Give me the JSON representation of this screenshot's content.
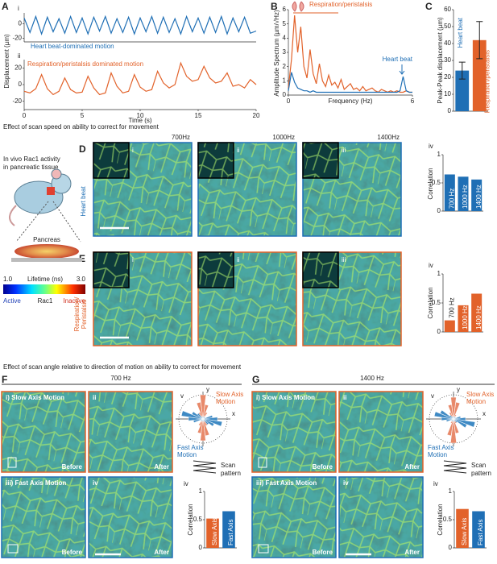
{
  "panels": {
    "A": {
      "label": "A"
    },
    "B": {
      "label": "B"
    },
    "C": {
      "label": "C"
    },
    "speed_header": "Effect of scan speed on ability to correct for movement",
    "mouse": {
      "caption": [
        "In vivo Rac1 activity",
        "in pancreatic tissue"
      ],
      "organ": "Pancreas",
      "scale_min": "1.0",
      "scale_name": "Lifetime (ns)",
      "scale_max": "3.0",
      "active": "Active",
      "rac": "Rac1",
      "inactive": "Inactive"
    },
    "D": {
      "label": "D",
      "headers": [
        "700Hz",
        "1000Hz",
        "1400Hz"
      ],
      "numerals": [
        "i",
        "ii",
        "iii"
      ],
      "side": [
        "Heart beat"
      ]
    },
    "E": {
      "label": "E",
      "numerals": [
        "i",
        "ii",
        "iii"
      ],
      "side": [
        "Respiration/",
        "Peristalsis"
      ]
    },
    "angle_header": "Effect of scan angle relative to direction of motion on ability to correct for movement",
    "F": {
      "label": "F",
      "header": "700 Hz",
      "images": [
        "i) Slow Axis Motion",
        "ii",
        "iii) Fast Axis Motion",
        "iv"
      ],
      "captions": [
        "Before",
        "After",
        "Before",
        "After"
      ]
    },
    "G": {
      "label": "G",
      "header": "1400 Hz",
      "images": [
        "i) Slow Axis Motion",
        "ii",
        "iii) Fast Axis Motion",
        "iv"
      ],
      "captions": [
        "Before",
        "After",
        "Before",
        "After"
      ]
    }
  },
  "chart_data": [
    {
      "type": "line",
      "label": "i",
      "annotation": "Heart beat-dominated motion",
      "ylabel": "Displacement (µm)",
      "color": "#1f6fb5",
      "x": [
        0,
        0.5,
        1,
        1.5,
        2,
        2.5,
        3,
        3.5,
        4,
        4.5,
        5,
        5.5,
        6,
        6.5,
        7,
        7.5,
        8,
        8.5,
        9,
        9.5,
        10,
        10.5,
        11,
        11.5,
        12,
        12.5,
        13,
        13.5,
        14,
        14.5,
        15,
        15.5,
        16,
        16.5,
        17,
        17.5,
        18,
        18.5,
        19,
        19.5,
        20
      ],
      "values": [
        8,
        -12,
        10,
        -14,
        9,
        -11,
        7,
        -13,
        10,
        -12,
        8,
        -14,
        9,
        -10,
        10,
        -13,
        7,
        -12,
        9,
        -14,
        8,
        -11,
        10,
        -13,
        9,
        -12,
        7,
        -14,
        10,
        -11,
        8,
        -13,
        9,
        -12,
        10,
        -14,
        8,
        -11,
        9,
        -13,
        -10
      ],
      "xlim": [
        0,
        20
      ],
      "ylim": [
        -25,
        15
      ],
      "yticks": [
        -20,
        0
      ]
    },
    {
      "type": "line",
      "label": "ii",
      "annotation": "Respiration/peristalsis dominated motion",
      "xlabel": "Time (s)",
      "color": "#e2622a",
      "x": [
        0,
        0.5,
        1,
        1.5,
        2,
        2.5,
        3,
        3.5,
        4,
        4.5,
        5,
        5.5,
        6,
        6.5,
        7,
        7.5,
        8,
        8.5,
        9,
        9.5,
        10,
        10.5,
        11,
        11.5,
        12,
        12.5,
        13,
        13.5,
        14,
        14.5,
        15,
        15.5,
        16,
        16.5,
        17,
        17.5,
        18,
        18.5,
        19,
        19.5,
        20
      ],
      "values": [
        -8,
        -10,
        -5,
        12,
        -5,
        -12,
        -8,
        8,
        -6,
        -10,
        -9,
        10,
        -4,
        -12,
        -10,
        14,
        -2,
        -10,
        -8,
        12,
        -3,
        -8,
        -6,
        16,
        2,
        -4,
        0,
        26,
        10,
        4,
        6,
        22,
        8,
        2,
        4,
        14,
        -2,
        0,
        -4,
        6,
        0
      ],
      "xlim": [
        0,
        20
      ],
      "ylim": [
        -30,
        30
      ],
      "yticks": [
        -20,
        0,
        20
      ],
      "xticks": [
        0,
        5,
        10,
        15,
        20
      ]
    },
    {
      "type": "line",
      "xlabel": "Frequency (Hz)",
      "ylabel": "Amplitude Spectrum (µm/√Hz)",
      "x": [
        0,
        0.15,
        0.3,
        0.45,
        0.6,
        0.75,
        0.9,
        1.05,
        1.2,
        1.35,
        1.5,
        1.65,
        1.8,
        1.95,
        2.1,
        2.25,
        2.4,
        2.55,
        2.7,
        2.85,
        3,
        3.15,
        3.3,
        3.45,
        3.6,
        3.75,
        3.9,
        4.05,
        4.2,
        4.35,
        4.5,
        4.65,
        4.8,
        4.95,
        5.1,
        5.25,
        5.4,
        5.55,
        5.7,
        5.85,
        6
      ],
      "series": [
        {
          "name": "Respiration/peristalsis",
          "color": "#e2622a",
          "values": [
            0.5,
            2.5,
            5.6,
            3.0,
            4.8,
            2.0,
            1.2,
            3.2,
            1.5,
            0.8,
            2.2,
            1.0,
            0.6,
            1.4,
            0.7,
            0.9,
            0.5,
            1.1,
            0.4,
            0.6,
            0.8,
            0.4,
            0.5,
            0.3,
            0.6,
            0.3,
            0.4,
            0.5,
            0.3,
            0.2,
            0.4,
            0.3,
            0.2,
            0.3,
            0.2,
            0.3,
            0.2,
            0.2,
            0.3,
            0.2,
            0.2
          ]
        },
        {
          "name": "Heart beat",
          "color": "#1f6fb5",
          "values": [
            0.3,
            1.6,
            0.9,
            0.5,
            0.4,
            0.3,
            0.3,
            0.2,
            0.3,
            0.2,
            0.2,
            0.2,
            0.2,
            0.2,
            0.2,
            0.2,
            0.2,
            0.2,
            0.2,
            0.2,
            0.2,
            0.2,
            0.2,
            0.2,
            0.2,
            0.2,
            0.2,
            0.2,
            0.2,
            0.2,
            0.2,
            0.2,
            0.2,
            0.2,
            0.2,
            0.2,
            0.3,
            1.3,
            0.3,
            0.2,
            0.2
          ]
        }
      ],
      "xlim": [
        0,
        6
      ],
      "ylim": [
        0,
        6
      ],
      "xticks": [
        0,
        6
      ],
      "yticks": [
        0,
        1,
        2,
        3,
        4,
        5,
        6
      ]
    },
    {
      "type": "bar",
      "ylabel": "Peak-Peak displacement (µm)",
      "categories": [
        "Heart beat",
        "Respiration/peristalsis"
      ],
      "values": [
        24,
        42
      ],
      "errors": [
        5,
        11
      ],
      "colors": [
        "#1f6fb5",
        "#e2622a"
      ],
      "ylim": [
        0,
        60
      ],
      "yticks": [
        0,
        10,
        20,
        30,
        40,
        50,
        60
      ]
    },
    {
      "type": "bar",
      "label": "iv",
      "ylabel": "Correlation",
      "categories": [
        "700 Hz",
        "1000 Hz",
        "1400 Hz"
      ],
      "values": [
        0.65,
        0.61,
        0.56
      ],
      "colors": [
        "#1f6fb5",
        "#1f6fb5",
        "#1f6fb5"
      ],
      "ylim": [
        0,
        1
      ],
      "yticks": [
        0,
        0.5,
        1
      ]
    },
    {
      "type": "bar",
      "label": "iv",
      "ylabel": "Correlation",
      "categories": [
        "700 Hz",
        "1000 Hz",
        "1400 Hz"
      ],
      "values": [
        0.2,
        0.46,
        0.66
      ],
      "colors": [
        "#e2622a",
        "#e2622a",
        "#e2622a"
      ],
      "ylim": [
        0,
        1
      ],
      "yticks": [
        0,
        0.5,
        1
      ]
    },
    {
      "type": "bar",
      "label": "iv",
      "ylabel": "Correlation",
      "categories": [
        "Slow Axis",
        "Fast Axis"
      ],
      "values": [
        0.52,
        0.65
      ],
      "colors": [
        "#e2622a",
        "#1f6fb5"
      ],
      "ylim": [
        0,
        1
      ],
      "yticks": [
        0,
        0.5,
        1
      ]
    },
    {
      "type": "bar",
      "label": "iv",
      "ylabel": "Correlation",
      "categories": [
        "Slow Axis",
        "Fast Axis"
      ],
      "values": [
        0.69,
        0.65
      ],
      "colors": [
        "#e2622a",
        "#1f6fb5"
      ],
      "ylim": [
        0,
        1
      ],
      "yticks": [
        0,
        0.5,
        1
      ]
    },
    {
      "type": "rose",
      "label": "v",
      "xaxis": "x",
      "yaxis": "y",
      "slow_text": [
        "Slow Axis",
        "Motion"
      ],
      "fast_text": [
        "Fast Axis",
        "Motion"
      ],
      "scan_text": [
        "Scan",
        "pattern"
      ],
      "rlim": [
        0,
        1
      ],
      "angles": [
        0,
        15,
        30,
        45,
        60,
        75,
        90,
        105,
        120,
        135,
        150,
        165,
        180,
        195,
        210,
        225,
        240,
        255,
        270,
        285,
        300,
        315,
        330,
        345
      ],
      "series": [
        {
          "name": "Slow Axis Motion",
          "color": "#e8896a",
          "values": [
            0.1,
            0.1,
            0.1,
            0.1,
            0.3,
            0.6,
            1.0,
            0.7,
            0.3,
            0.1,
            0.1,
            0.1,
            0.1,
            0.1,
            0.1,
            0.1,
            0.3,
            0.6,
            0.9,
            0.7,
            0.3,
            0.1,
            0.1,
            0.1
          ]
        },
        {
          "name": "Fast Axis Motion",
          "color": "#3f8ac4",
          "values": [
            0.6,
            0.4,
            0.1,
            0.1,
            0.1,
            0.1,
            0.1,
            0.1,
            0.1,
            0.3,
            0.5,
            0.9,
            0.6,
            0.4,
            0.1,
            0.1,
            0.1,
            0.1,
            0.1,
            0.1,
            0.1,
            0.3,
            0.5,
            0.8
          ]
        }
      ]
    },
    {
      "type": "rose",
      "label": "v",
      "xaxis": "x",
      "yaxis": "y",
      "slow_text": [
        "Slow Axis",
        "Motion"
      ],
      "fast_text": [
        "Fast Axis",
        "Motion"
      ],
      "scan_text": [
        "Scan",
        "pattern"
      ],
      "rlim": [
        0,
        1
      ],
      "angles": [
        0,
        15,
        30,
        45,
        60,
        75,
        90,
        105,
        120,
        135,
        150,
        165,
        180,
        195,
        210,
        225,
        240,
        255,
        270,
        285,
        300,
        315,
        330,
        345
      ],
      "series": [
        {
          "name": "Slow Axis Motion",
          "color": "#e8896a",
          "values": [
            0.1,
            0.1,
            0.1,
            0.1,
            0.2,
            0.7,
            0.9,
            0.6,
            0.3,
            0.1,
            0.1,
            0.1,
            0.1,
            0.1,
            0.1,
            0.1,
            0.2,
            0.7,
            1.0,
            0.6,
            0.2,
            0.1,
            0.1,
            0.1
          ]
        },
        {
          "name": "Fast Axis Motion",
          "color": "#3f8ac4",
          "values": [
            0.5,
            0.3,
            0.1,
            0.1,
            0.1,
            0.1,
            0.1,
            0.1,
            0.1,
            0.2,
            0.6,
            0.8,
            0.5,
            0.3,
            0.1,
            0.1,
            0.1,
            0.1,
            0.1,
            0.1,
            0.1,
            0.2,
            0.6,
            0.9
          ]
        }
      ]
    }
  ]
}
